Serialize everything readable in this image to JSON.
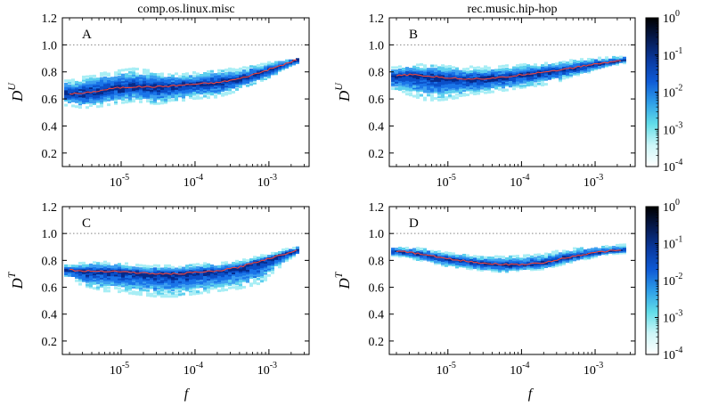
{
  "figure": {
    "column_titles": [
      "comp.os.linux.misc",
      "rec.music.hip-hop"
    ],
    "xlabel": "f",
    "colorbar": {
      "ticks": [
        {
          "base": "10",
          "exp": "0",
          "value": 1
        },
        {
          "base": "10",
          "exp": "-1",
          "value": 0.1
        },
        {
          "base": "10",
          "exp": "-2",
          "value": 0.01
        },
        {
          "base": "10",
          "exp": "-3",
          "value": 0.001
        },
        {
          "base": "10",
          "exp": "-4",
          "value": 0.0001
        }
      ],
      "colors": [
        "#ffffff",
        "#cdf6f8",
        "#62dde8",
        "#2f9fe8",
        "#0f5bd6",
        "#0a3aa0",
        "#061a50",
        "#000000"
      ]
    },
    "colors": {
      "median_line": "#f0453c",
      "reference_line": "#888888",
      "density_mid": "#1a74e8"
    }
  },
  "chart_data": [
    {
      "type": "heatmap",
      "panel_label": "A",
      "title": "comp.os.linux.misc",
      "ylabel": {
        "base": "D",
        "sup": "U"
      },
      "xlabel": "",
      "x_scale": "log",
      "xlim": [
        1.6e-06,
        0.0035
      ],
      "ylim": [
        0.1,
        1.2
      ],
      "yticks": [
        "0.2",
        "0.4",
        "0.6",
        "0.8",
        "1.0",
        "1.2"
      ],
      "xticks": [
        {
          "base": "10",
          "exp": "-5"
        },
        {
          "base": "10",
          "exp": "-4"
        },
        {
          "base": "10",
          "exp": "-3"
        }
      ],
      "reference_y": 1.0,
      "median": {
        "x": [
          2e-06,
          3e-06,
          5e-06,
          8e-06,
          1.5e-05,
          3e-05,
          6e-05,
          0.0001,
          0.0002,
          0.0004,
          0.0008,
          0.0015,
          0.0024
        ],
        "y": [
          0.64,
          0.64,
          0.66,
          0.68,
          0.69,
          0.69,
          0.7,
          0.71,
          0.72,
          0.75,
          0.8,
          0.85,
          0.89
        ]
      },
      "spread": {
        "lower": [
          0.57,
          0.55,
          0.56,
          0.58,
          0.6,
          0.58,
          0.6,
          0.62,
          0.63,
          0.68,
          0.74,
          0.81,
          0.86
        ],
        "upper": [
          0.72,
          0.74,
          0.77,
          0.78,
          0.8,
          0.78,
          0.77,
          0.78,
          0.8,
          0.81,
          0.85,
          0.88,
          0.9
        ]
      }
    },
    {
      "type": "heatmap",
      "panel_label": "B",
      "title": "rec.music.hip-hop",
      "ylabel": {
        "base": "D",
        "sup": "U"
      },
      "xlabel": "",
      "x_scale": "log",
      "xlim": [
        1.6e-06,
        0.0035
      ],
      "ylim": [
        0.1,
        1.2
      ],
      "yticks": [
        "0.2",
        "0.4",
        "0.6",
        "0.8",
        "1.0",
        "1.2"
      ],
      "xticks": [
        {
          "base": "10",
          "exp": "-5"
        },
        {
          "base": "10",
          "exp": "-4"
        },
        {
          "base": "10",
          "exp": "-3"
        }
      ],
      "reference_y": 1.0,
      "median": {
        "x": [
          2e-06,
          3e-06,
          5e-06,
          8e-06,
          1.5e-05,
          3e-05,
          6e-05,
          0.0001,
          0.0002,
          0.0004,
          0.0008,
          0.0015,
          0.0024
        ],
        "y": [
          0.77,
          0.78,
          0.77,
          0.76,
          0.75,
          0.75,
          0.76,
          0.78,
          0.8,
          0.82,
          0.85,
          0.87,
          0.89
        ]
      },
      "spread": {
        "lower": [
          0.68,
          0.66,
          0.62,
          0.62,
          0.64,
          0.66,
          0.68,
          0.7,
          0.72,
          0.76,
          0.8,
          0.84,
          0.87
        ],
        "upper": [
          0.82,
          0.84,
          0.84,
          0.83,
          0.82,
          0.82,
          0.83,
          0.84,
          0.85,
          0.87,
          0.89,
          0.9,
          0.91
        ]
      }
    },
    {
      "type": "heatmap",
      "panel_label": "C",
      "title": "",
      "ylabel": {
        "base": "D",
        "sup": "T"
      },
      "xlabel": "f",
      "x_scale": "log",
      "xlim": [
        1.6e-06,
        0.0035
      ],
      "ylim": [
        0.1,
        1.2
      ],
      "yticks": [
        "0.2",
        "0.4",
        "0.6",
        "0.8",
        "1.0",
        "1.2"
      ],
      "xticks": [
        {
          "base": "10",
          "exp": "-5"
        },
        {
          "base": "10",
          "exp": "-4"
        },
        {
          "base": "10",
          "exp": "-3"
        }
      ],
      "reference_y": 1.0,
      "median": {
        "x": [
          2e-06,
          3e-06,
          5e-06,
          8e-06,
          1.5e-05,
          3e-05,
          6e-05,
          0.0001,
          0.0002,
          0.0004,
          0.0008,
          0.0015,
          0.0024
        ],
        "y": [
          0.73,
          0.72,
          0.72,
          0.72,
          0.71,
          0.7,
          0.7,
          0.71,
          0.72,
          0.75,
          0.8,
          0.84,
          0.88
        ]
      },
      "spread": {
        "lower": [
          0.68,
          0.63,
          0.6,
          0.6,
          0.58,
          0.56,
          0.56,
          0.58,
          0.6,
          0.62,
          0.66,
          0.78,
          0.85
        ],
        "upper": [
          0.76,
          0.77,
          0.78,
          0.77,
          0.76,
          0.75,
          0.75,
          0.76,
          0.77,
          0.79,
          0.83,
          0.87,
          0.9
        ]
      }
    },
    {
      "type": "heatmap",
      "panel_label": "D",
      "title": "",
      "ylabel": {
        "base": "D",
        "sup": "T"
      },
      "xlabel": "f",
      "x_scale": "log",
      "xlim": [
        1.6e-06,
        0.0035
      ],
      "ylim": [
        0.1,
        1.2
      ],
      "yticks": [
        "0.2",
        "0.4",
        "0.6",
        "0.8",
        "1.0",
        "1.2"
      ],
      "xticks": [
        {
          "base": "10",
          "exp": "-5"
        },
        {
          "base": "10",
          "exp": "-4"
        },
        {
          "base": "10",
          "exp": "-3"
        }
      ],
      "reference_y": 1.0,
      "median": {
        "x": [
          2e-06,
          3e-06,
          5e-06,
          8e-06,
          1.5e-05,
          3e-05,
          6e-05,
          0.0001,
          0.0002,
          0.0004,
          0.0008,
          0.0015,
          0.0024
        ],
        "y": [
          0.87,
          0.86,
          0.84,
          0.82,
          0.8,
          0.78,
          0.77,
          0.77,
          0.78,
          0.82,
          0.85,
          0.87,
          0.88
        ]
      },
      "spread": {
        "lower": [
          0.84,
          0.82,
          0.8,
          0.77,
          0.75,
          0.73,
          0.72,
          0.73,
          0.74,
          0.78,
          0.82,
          0.85,
          0.86
        ],
        "upper": [
          0.89,
          0.89,
          0.88,
          0.86,
          0.84,
          0.82,
          0.82,
          0.82,
          0.84,
          0.87,
          0.89,
          0.9,
          0.91
        ]
      }
    }
  ]
}
